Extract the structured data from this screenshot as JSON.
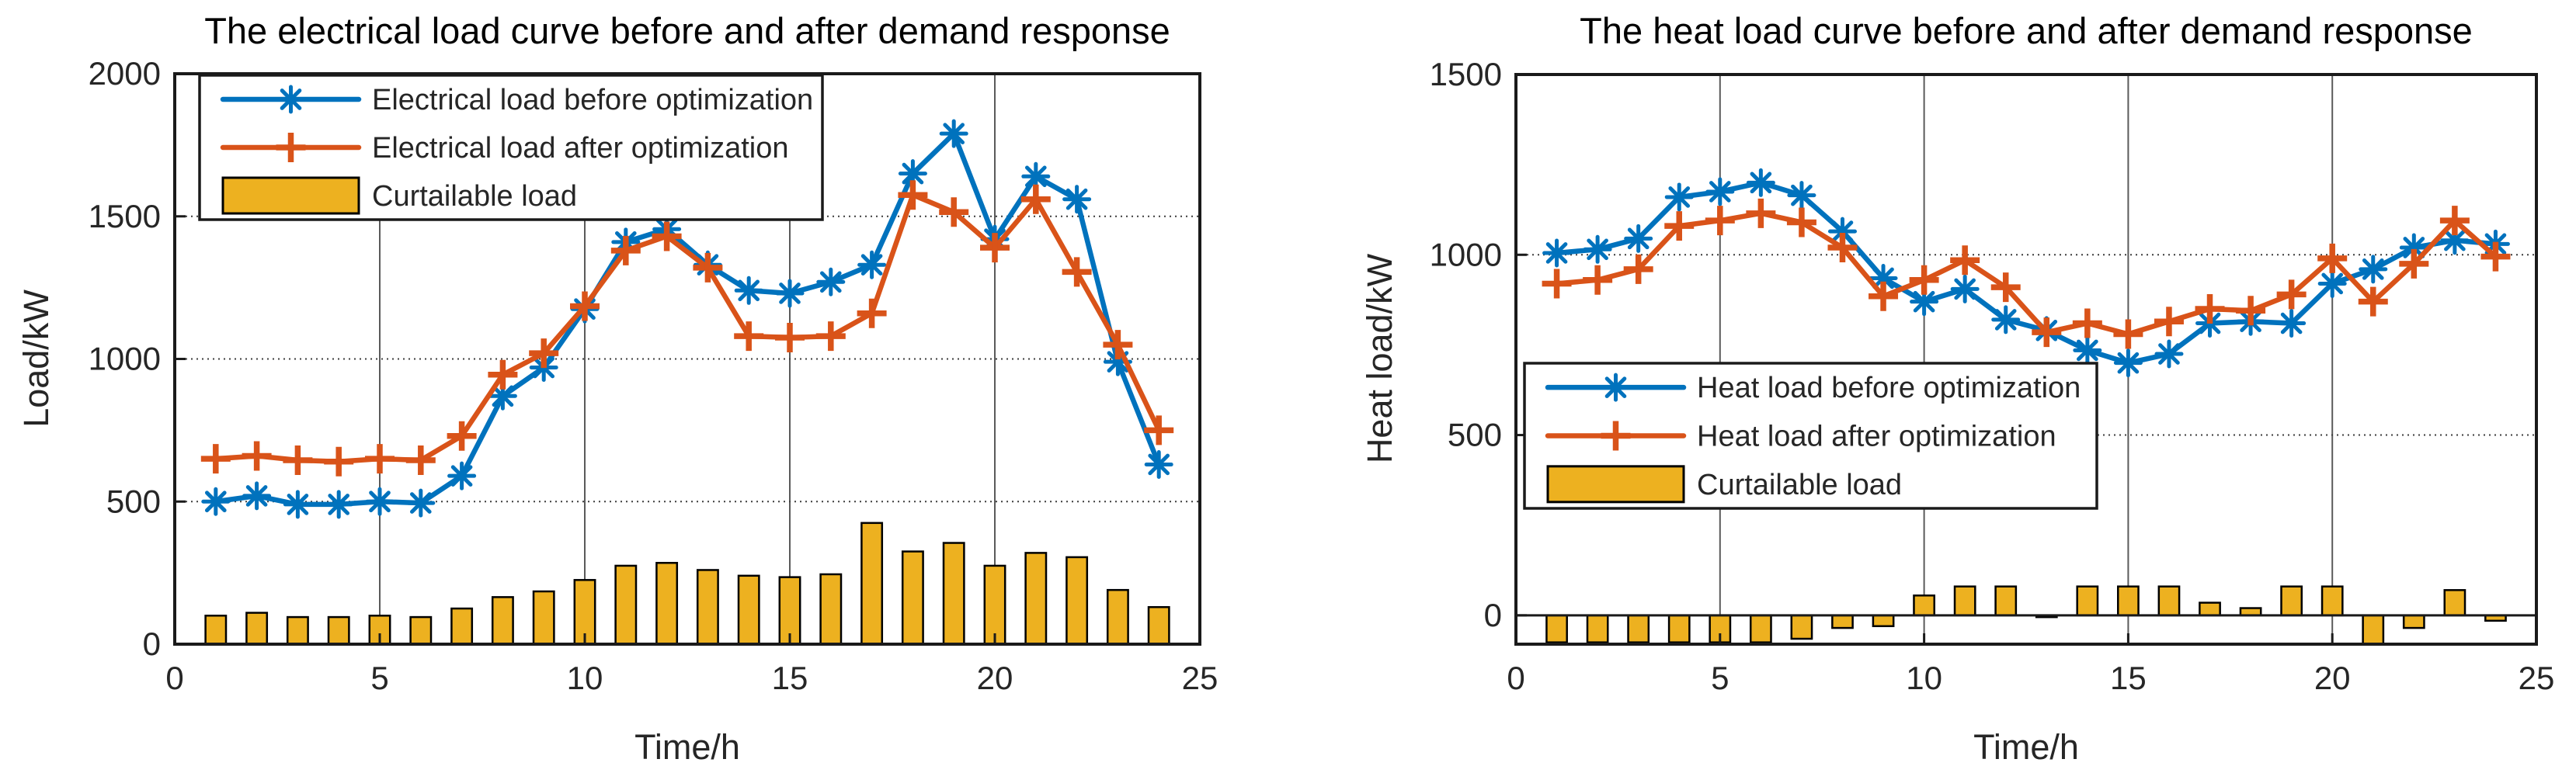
{
  "figure": {
    "background": "#ffffff",
    "frame_color": "#1a1a1a",
    "grid_vertical_color": "#5a5a5a",
    "grid_horizontal_color": "#3d3d3d",
    "text_color": "#262626"
  },
  "chart_data": [
    {
      "type": "line+bar",
      "title": "The electrical load curve before and after demand response",
      "xlabel": "Time/h",
      "ylabel": "Load/kW",
      "xlim": [
        0,
        25
      ],
      "ylim": [
        0,
        2000
      ],
      "xticks": [
        0,
        5,
        10,
        15,
        20,
        25
      ],
      "yticks": [
        0,
        500,
        1000,
        1500,
        2000
      ],
      "grid": true,
      "legend_position": "top-left",
      "hours": [
        1,
        2,
        3,
        4,
        5,
        6,
        7,
        8,
        9,
        10,
        11,
        12,
        13,
        14,
        15,
        16,
        17,
        18,
        19,
        20,
        21,
        22,
        23,
        24
      ],
      "series": [
        {
          "name": "Electrical load before optimization",
          "kind": "line",
          "marker": "asterisk",
          "color": "#0072BD",
          "values": [
            500,
            520,
            490,
            490,
            500,
            495,
            590,
            870,
            970,
            1175,
            1410,
            1455,
            1330,
            1240,
            1230,
            1270,
            1330,
            1650,
            1790,
            1420,
            1640,
            1560,
            990,
            630
          ]
        },
        {
          "name": "Electrical load after optimization",
          "kind": "line",
          "marker": "plus",
          "color": "#D95319",
          "values": [
            650,
            660,
            645,
            640,
            650,
            645,
            730,
            945,
            1020,
            1185,
            1380,
            1430,
            1320,
            1080,
            1075,
            1080,
            1160,
            1575,
            1515,
            1390,
            1560,
            1305,
            1050,
            750
          ]
        },
        {
          "name": "Curtailable load",
          "kind": "bar",
          "color": "#EDB120",
          "values": [
            100,
            110,
            95,
            95,
            100,
            95,
            125,
            165,
            185,
            225,
            275,
            285,
            260,
            240,
            235,
            245,
            425,
            325,
            355,
            275,
            320,
            305,
            190,
            130
          ]
        }
      ]
    },
    {
      "type": "line+bar",
      "title": "The heat load curve before and after demand response",
      "xlabel": "Time/h",
      "ylabel": "Heat load/kW",
      "xlim": [
        0,
        25
      ],
      "ylim": [
        -80,
        1500
      ],
      "xticks": [
        0,
        5,
        10,
        15,
        20,
        25
      ],
      "yticks": [
        0,
        500,
        1000,
        1500
      ],
      "grid": true,
      "legend_position": "middle-left",
      "hours": [
        1,
        2,
        3,
        4,
        5,
        6,
        7,
        8,
        9,
        10,
        11,
        12,
        13,
        14,
        15,
        16,
        17,
        18,
        19,
        20,
        21,
        22,
        23,
        24
      ],
      "series": [
        {
          "name": "Heat load before optimization",
          "kind": "line",
          "marker": "asterisk",
          "color": "#0072BD",
          "values": [
            1005,
            1015,
            1045,
            1160,
            1175,
            1200,
            1165,
            1065,
            935,
            870,
            905,
            820,
            790,
            735,
            700,
            725,
            810,
            815,
            810,
            920,
            960,
            1020,
            1040,
            1030
          ]
        },
        {
          "name": "Heat load after optimization",
          "kind": "line",
          "marker": "plus",
          "color": "#D95319",
          "values": [
            920,
            930,
            960,
            1080,
            1095,
            1115,
            1090,
            1020,
            885,
            930,
            985,
            910,
            785,
            810,
            780,
            815,
            850,
            845,
            890,
            990,
            870,
            975,
            1095,
            995
          ]
        },
        {
          "name": "Curtailable load",
          "kind": "bar",
          "color": "#EDB120",
          "values": [
            -75,
            -75,
            -75,
            -75,
            -75,
            -75,
            -65,
            -35,
            -30,
            55,
            80,
            80,
            -5,
            80,
            80,
            80,
            35,
            20,
            80,
            80,
            -80,
            -35,
            70,
            -15
          ]
        }
      ]
    }
  ]
}
